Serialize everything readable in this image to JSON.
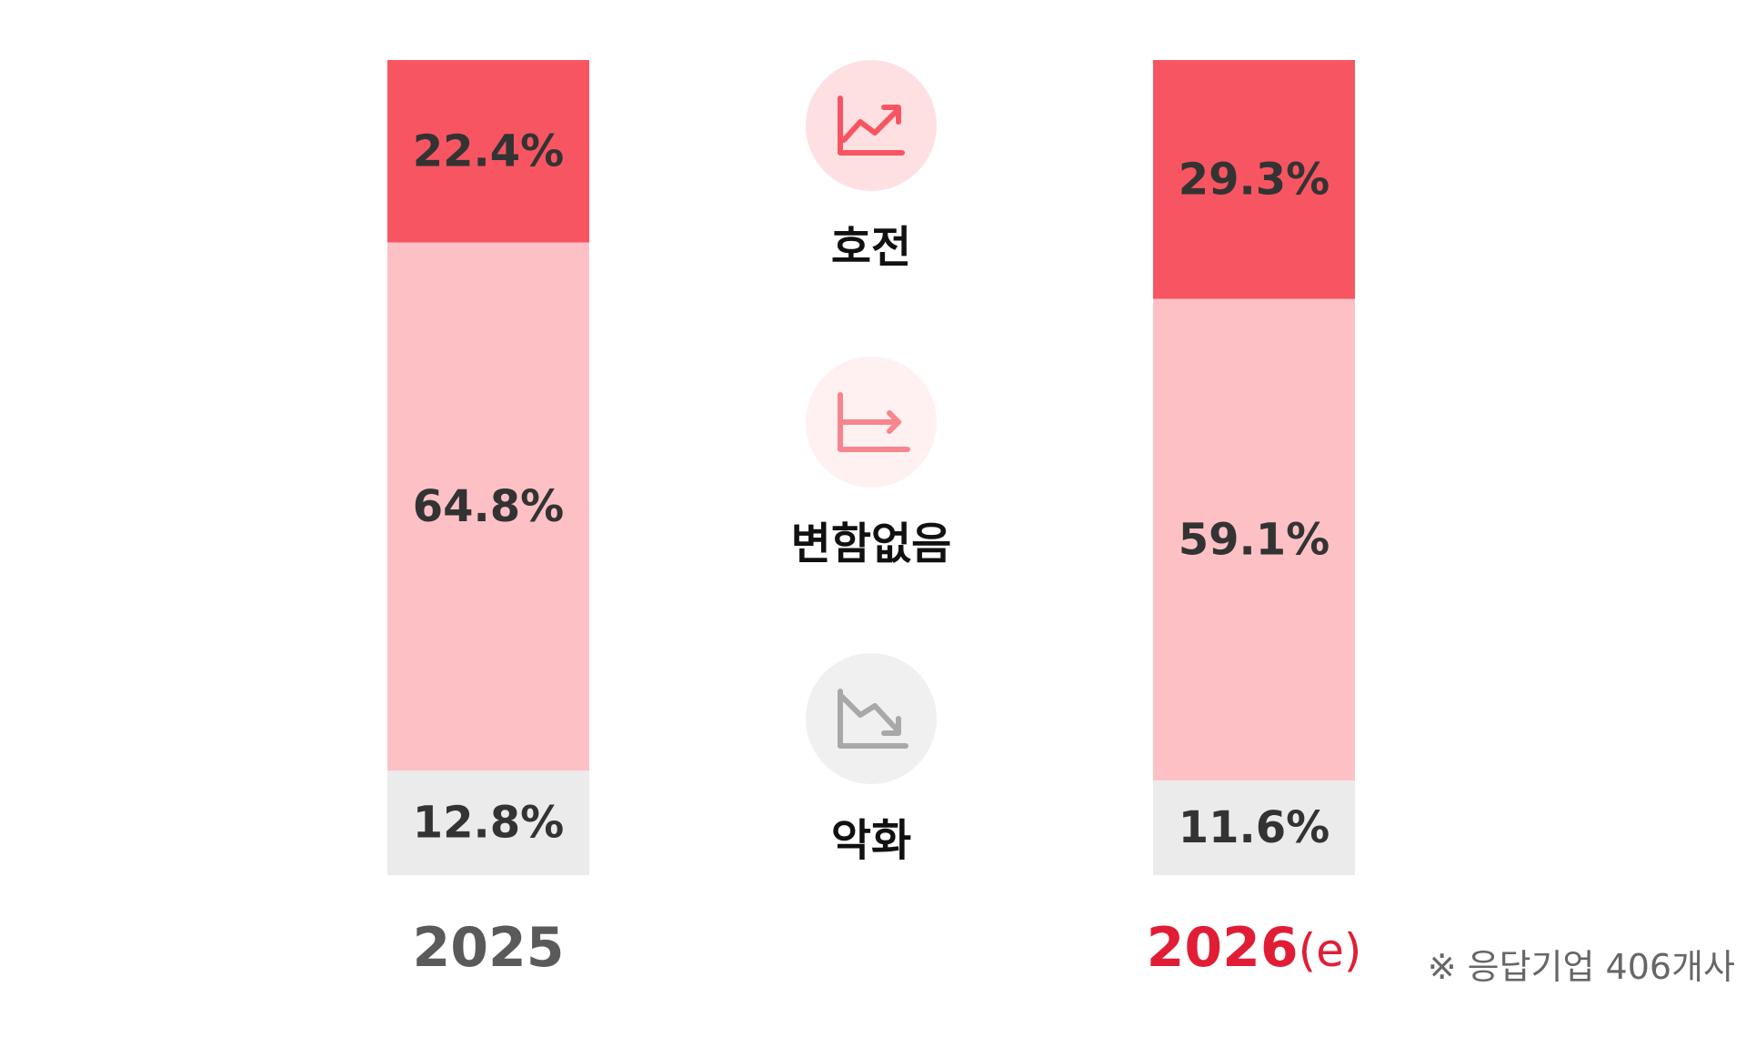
{
  "chart_data": {
    "type": "bar",
    "stacked": true,
    "categories": [
      "2025",
      "2026(e)"
    ],
    "category_labels": [
      {
        "main": "2025",
        "suffix": ""
      },
      {
        "main": "2026",
        "suffix": "(e)"
      }
    ],
    "series": [
      {
        "name": "호전",
        "values": [
          22.4,
          29.3
        ],
        "labels": [
          "22.4%",
          "29.3%"
        ],
        "color": "#f75561",
        "icon": "trending-up-icon"
      },
      {
        "name": "변함없음",
        "values": [
          64.8,
          59.1
        ],
        "labels": [
          "64.8%",
          "59.1%"
        ],
        "color": "#fdc1c5",
        "icon": "trending-flat-icon"
      },
      {
        "name": "악화",
        "values": [
          12.8,
          11.6
        ],
        "labels": [
          "12.8%",
          "11.6%"
        ],
        "color": "#ebebeb",
        "icon": "trending-down-icon"
      }
    ],
    "ylim": [
      0,
      100
    ],
    "unit": "%",
    "grid": false,
    "legend_position": "center-between-bars",
    "category_label_colors": [
      "#5a5a5a",
      "#e11d36"
    ],
    "icon_colors": [
      "#f75561",
      "#f7858d",
      "#a8a8a8"
    ],
    "icon_backgrounds": [
      "#fee0e3",
      "#fff0f1",
      "#f0f0f0"
    ],
    "note": "※ 응답기업 406개사"
  }
}
